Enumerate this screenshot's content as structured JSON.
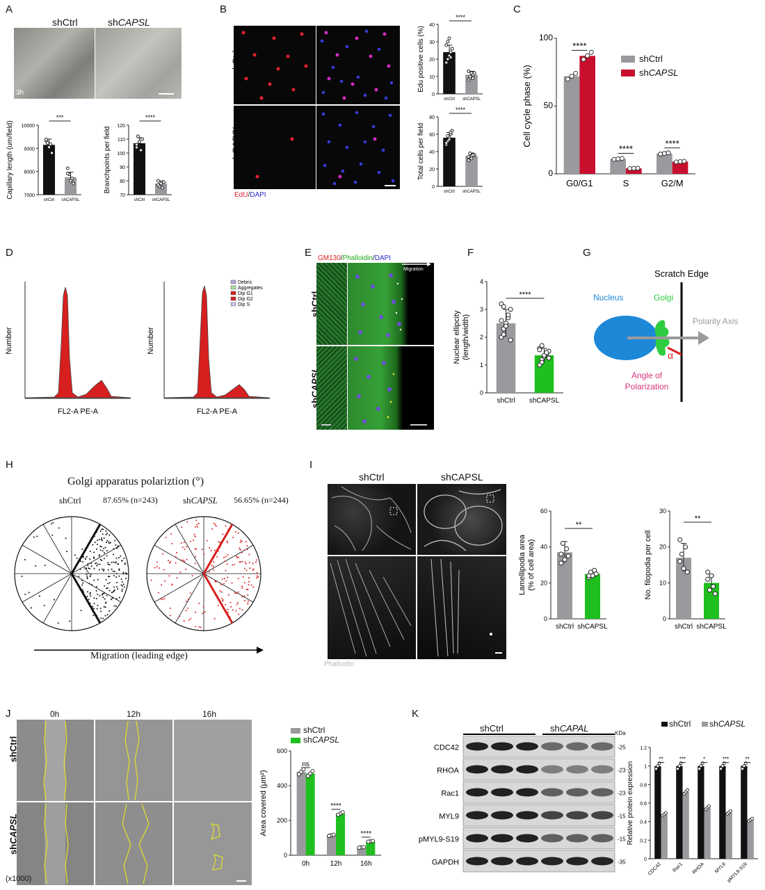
{
  "panels": {
    "A": {
      "letter": "A",
      "col1": "shCtrl",
      "col2_prefix": "sh",
      "col2_gene": "CAPSL",
      "time": "3h",
      "chart1_ylabel": "Capillary length (um/field)",
      "chart2_ylabel": "Branchpoints per field",
      "x_ctrl": "shCtrl",
      "x_kd": "shCAPSL",
      "sig1": "***",
      "sig2": "****"
    },
    "B": {
      "letter": "B",
      "row1": "shCtrl",
      "row2_prefix": "sh",
      "row2_gene": "CAPSL",
      "legend_edu": "EdU",
      "legend_sep": "/",
      "legend_dapi": "DAPI",
      "chart1_ylabel": "Edu positive cells (%)",
      "chart2_ylabel": "Total cells per field",
      "x_ctrl": "shCtrl",
      "x_kd": "shCAPSL",
      "sig": "****"
    },
    "C": {
      "letter": "C",
      "ylabel": "Cell cycle phase (%)",
      "legend_ctrl": "shCtrl",
      "legend_kd_prefix": "sh",
      "legend_kd_gene": "CAPSL",
      "sig": "****"
    },
    "D": {
      "letter": "D",
      "ylabel": "Number",
      "xlabel": "FL2-A PE-A",
      "legend": [
        "Debris",
        "Aggregates",
        "Dip G1",
        "Dip G2",
        "Dip S"
      ]
    },
    "E": {
      "letter": "E",
      "stain_gm": "GM130",
      "stain_sep1": "/",
      "stain_ph": "Phalloidin",
      "stain_sep2": "/",
      "stain_dapi": "DAPI",
      "migration": "Migration",
      "row1": "shCtrl",
      "row2_prefix": "sh",
      "row2_gene": "CAPSL"
    },
    "F": {
      "letter": "F",
      "ylabel1": "Nuclear ellipcity",
      "ylabel2": "(length/width)",
      "x_ctrl": "shCtrl",
      "x_kd_prefix": "sh",
      "x_kd_gene": "CAPSL",
      "sig": "****"
    },
    "G": {
      "letter": "G",
      "scratch": "Scratch Edge",
      "nucleus": "Nucleus",
      "golgi": "Golgi",
      "axis": "Polarity Axis",
      "alpha": "α",
      "angle1": "Angle of",
      "angle2": "Polarization"
    },
    "H": {
      "letter": "H",
      "title": "Golgi apparatus polariztion (°)",
      "ctrl": "shCtrl",
      "kd_prefix": "sh",
      "kd_gene": "CAPSL",
      "ctrl_pct": "87.65% (n=243)",
      "kd_pct": "56.65% (n=244)",
      "migration": "Migration (leading edge)"
    },
    "I": {
      "letter": "I",
      "col1": "shCtrl",
      "col2": "shCAPSL",
      "stain": "Phalloidin",
      "chart1_ylabel1": "Lamellipodia area",
      "chart1_ylabel2": "(% of cell area)",
      "chart2_ylabel": "No. filopodia per cell",
      "x_ctrl": "shCtrl",
      "x_kd_prefix": "sh",
      "x_kd_gene": "CAPSL",
      "sig": "**"
    },
    "J": {
      "letter": "J",
      "times": [
        "0h",
        "12h",
        "16h"
      ],
      "row1": "shCtrl",
      "row2_prefix": "sh",
      "row2_gene": "CAPSL",
      "mag": "(x1000)",
      "ylabel": "Area covered (μm²)",
      "legend_ctrl": "shCtrl",
      "legend_kd_prefix": "sh",
      "legend_kd_gene": "CAPSL",
      "sig_ns": "ns",
      "sig": "****"
    },
    "K": {
      "letter": "K",
      "group_ctrl": "shCtrl",
      "group_kd_prefix": "sh",
      "group_kd_gene": "CAPAL",
      "kda": "KDa",
      "proteins": [
        "CDC42",
        "RHOA",
        "Rac1",
        "MYL9",
        "pMYL9-S19",
        "GAPDH"
      ],
      "sizes": [
        "-25",
        "-23",
        "-23",
        "-15",
        "-15",
        "-35"
      ],
      "ylabel": "Relative protein expression",
      "legend_ctrl": "shCtrl",
      "legend_kd_prefix": "sh",
      "legend_kd_gene": "CAPSL",
      "sigs": [
        "**",
        "***",
        "*",
        "***",
        "**"
      ]
    }
  },
  "colors": {
    "grey_bar": "#9a9a9e",
    "red_bar": "#c8102e",
    "green_bar": "#1fbf1f",
    "black_bar": "#111111",
    "yellow_trace": "#e5e02a",
    "nucleus_blue": "#1e88d8",
    "golgi_green": "#2ecc40",
    "angle_pink": "#d6337a"
  },
  "chart_data": [
    {
      "id": "A1",
      "type": "bar",
      "categories": [
        "shCtrl",
        "shCAPSL"
      ],
      "values": [
        9150,
        7750
      ],
      "errors": [
        250,
        220
      ],
      "ylim": [
        7000,
        10000
      ],
      "yticks": [
        7000,
        8000,
        9000,
        10000
      ],
      "points": [
        [
          9320,
          9230,
          9050,
          9180,
          8800,
          9380
        ],
        [
          8140,
          7880,
          7600,
          7700,
          7480,
          7920
        ]
      ],
      "ylabel": "Capillary length (um/field)"
    },
    {
      "id": "A2",
      "type": "bar",
      "categories": [
        "shCtrl",
        "shCAPSL"
      ],
      "values": [
        107,
        78
      ],
      "errors": [
        4,
        2
      ],
      "ylim": [
        70,
        120
      ],
      "yticks": [
        70,
        80,
        90,
        100,
        110,
        120
      ],
      "points": [
        [
          104,
          112,
          108,
          102,
          110,
          106
        ],
        [
          80,
          76,
          78,
          75,
          79,
          77
        ]
      ],
      "ylabel": "Branchpoints per field"
    },
    {
      "id": "B1",
      "type": "bar",
      "categories": [
        "shCtrl",
        "shCAPSL"
      ],
      "values": [
        24,
        11
      ],
      "errors": [
        4,
        2
      ],
      "ylim": [
        0,
        40
      ],
      "yticks": [
        0,
        10,
        20,
        30,
        40
      ],
      "points": [
        [
          18,
          20,
          22,
          24,
          26,
          28,
          30,
          32,
          21
        ],
        [
          8,
          9,
          10,
          11,
          12,
          13,
          10,
          12,
          9
        ]
      ],
      "ylabel": "Edu positive cells (%)"
    },
    {
      "id": "B2",
      "type": "bar",
      "categories": [
        "shCtrl",
        "shCAPSL"
      ],
      "values": [
        56,
        35
      ],
      "errors": [
        6,
        3
      ],
      "ylim": [
        0,
        80
      ],
      "yticks": [
        0,
        20,
        40,
        60,
        80
      ],
      "points": [
        [
          48,
          52,
          56,
          60,
          64,
          50,
          58,
          54,
          62
        ],
        [
          30,
          33,
          35,
          37,
          36,
          34,
          38,
          32,
          36
        ]
      ],
      "ylabel": "Total cells per field"
    },
    {
      "id": "C",
      "type": "bar",
      "categories": [
        "G0/G1",
        "S",
        "G2/M"
      ],
      "series": [
        {
          "name": "shCtrl",
          "values": [
            72,
            11,
            15
          ]
        },
        {
          "name": "shCAPSL",
          "values": [
            87,
            4,
            9
          ]
        }
      ],
      "ylim": [
        0,
        100
      ],
      "yticks": [
        0,
        50,
        100
      ],
      "ylabel": "Cell cycle phase (%)"
    },
    {
      "id": "F",
      "type": "bar",
      "categories": [
        "shCtrl",
        "shCAPSL"
      ],
      "values": [
        2.5,
        1.35
      ],
      "errors": [
        0.5,
        0.25
      ],
      "ylim": [
        0,
        4
      ],
      "yticks": [
        0,
        1,
        2,
        3,
        4
      ],
      "points": [
        [
          2.0,
          2.3,
          2.5,
          2.7,
          3.0,
          3.2,
          2.1,
          2.4,
          2.8,
          1.9,
          2.6,
          3.1
        ],
        [
          1.0,
          1.2,
          1.3,
          1.4,
          1.5,
          1.6,
          1.1,
          1.35,
          1.45,
          1.25,
          1.55,
          1.7
        ]
      ],
      "ylabel": "Nuclear ellipcity (length/width)"
    },
    {
      "id": "I1",
      "type": "bar",
      "categories": [
        "shCtrl",
        "shCAPSL"
      ],
      "values": [
        37,
        25
      ],
      "errors": [
        6,
        2
      ],
      "ylim": [
        0,
        60
      ],
      "yticks": [
        0,
        20,
        40,
        60
      ],
      "points": [
        [
          36,
          42,
          33,
          39,
          35,
          31
        ],
        [
          23,
          26,
          24,
          27,
          25,
          24
        ]
      ],
      "ylabel": "Lamellipodia area (% of cell area)"
    },
    {
      "id": "I2",
      "type": "bar",
      "categories": [
        "shCtrl",
        "shCAPSL"
      ],
      "values": [
        17,
        10
      ],
      "errors": [
        4,
        2
      ],
      "ylim": [
        0,
        30
      ],
      "yticks": [
        0,
        10,
        20,
        30
      ],
      "points": [
        [
          22,
          18,
          14,
          20,
          13,
          16
        ],
        [
          11,
          8,
          12,
          9,
          7,
          13
        ]
      ],
      "ylabel": "No. filopodia per cell"
    },
    {
      "id": "J",
      "type": "bar",
      "categories": [
        "0h",
        "12h",
        "16h"
      ],
      "series": [
        {
          "name": "shCtrl",
          "values": [
            480,
            115,
            45
          ]
        },
        {
          "name": "shCAPSL",
          "values": [
            470,
            240,
            80
          ]
        }
      ],
      "ylim": [
        0,
        600
      ],
      "yticks": [
        0,
        200,
        400,
        600
      ],
      "ylabel": "Area covered (μm²)"
    },
    {
      "id": "K",
      "type": "bar",
      "categories": [
        "CDC42",
        "Rac1",
        "RHOA",
        "MYL9",
        "pMYL9-S19"
      ],
      "series": [
        {
          "name": "shCtrl",
          "values": [
            1.0,
            1.0,
            1.0,
            1.0,
            1.0
          ]
        },
        {
          "name": "shCAPSL",
          "values": [
            0.48,
            0.72,
            0.55,
            0.5,
            0.42
          ]
        }
      ],
      "ylim": [
        0,
        1.2
      ],
      "yticks": [
        0.0,
        0.2,
        0.4,
        0.6,
        0.8,
        1.0,
        1.2
      ],
      "ylabel": "Relative protein expression"
    }
  ]
}
